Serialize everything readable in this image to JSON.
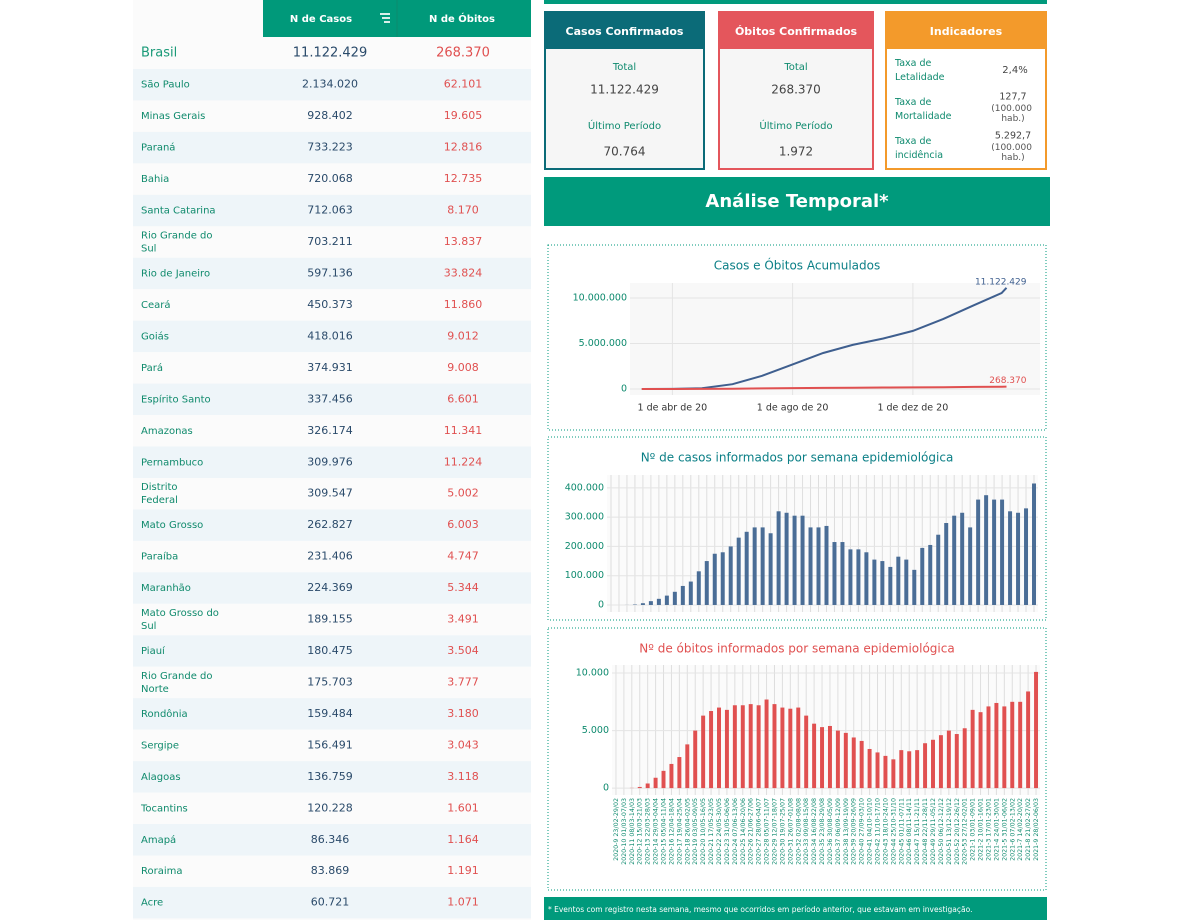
{
  "table": {
    "header": [
      "N de Casos",
      "N de Óbitos"
    ],
    "total": [
      "Brasil",
      "11.122.429",
      "268.370"
    ],
    "rows": [
      [
        "São Paulo",
        "2.134.020",
        "62.101"
      ],
      [
        "Minas Gerais",
        "928.402",
        "19.605"
      ],
      [
        "Paraná",
        "733.223",
        "12.816"
      ],
      [
        "Bahia",
        "720.068",
        "12.735"
      ],
      [
        "Santa Catarina",
        "712.063",
        "8.170"
      ],
      [
        "Rio Grande do Sul",
        "703.211",
        "13.837"
      ],
      [
        "Rio de Janeiro",
        "597.136",
        "33.824"
      ],
      [
        "Ceará",
        "450.373",
        "11.860"
      ],
      [
        "Goiás",
        "418.016",
        "9.012"
      ],
      [
        "Pará",
        "374.931",
        "9.008"
      ],
      [
        "Espírito Santo",
        "337.456",
        "6.601"
      ],
      [
        "Amazonas",
        "326.174",
        "11.341"
      ],
      [
        "Pernambuco",
        "309.976",
        "11.224"
      ],
      [
        "Distrito Federal",
        "309.547",
        "5.002"
      ],
      [
        "Mato Grosso",
        "262.827",
        "6.003"
      ],
      [
        "Paraíba",
        "231.406",
        "4.747"
      ],
      [
        "Maranhão",
        "224.369",
        "5.344"
      ],
      [
        "Mato Grosso do Sul",
        "189.155",
        "3.491"
      ],
      [
        "Piauí",
        "180.475",
        "3.504"
      ],
      [
        "Rio Grande do Norte",
        "175.703",
        "3.777"
      ],
      [
        "Rondônia",
        "159.484",
        "3.180"
      ],
      [
        "Sergipe",
        "156.491",
        "3.043"
      ],
      [
        "Alagoas",
        "136.759",
        "3.118"
      ],
      [
        "Tocantins",
        "120.228",
        "1.601"
      ],
      [
        "Amapá",
        "86.346",
        "1.164"
      ],
      [
        "Roraima",
        "83.869",
        "1.191"
      ],
      [
        "Acre",
        "60.721",
        "1.071"
      ]
    ]
  },
  "cards": [
    {
      "title": "Casos Confirmados",
      "total_label": "Total",
      "total": "11.122.429",
      "period_label": "Último Período",
      "period": "70.764",
      "color": "#0b6b78"
    },
    {
      "title": "Óbitos Confirmados",
      "total_label": "Total",
      "total": "268.370",
      "period_label": "Último Período",
      "period": "1.972",
      "color": "#e4565c"
    }
  ],
  "indicators": {
    "title": "Indicadores",
    "color": "#f39a2b",
    "items": [
      {
        "label": "Taxa de Letalidade",
        "value": "2,4%"
      },
      {
        "label": "Taxa de Mortalidade",
        "value": "127,7",
        "unit": "(100.000 hab.)"
      },
      {
        "label": "Taxa de incidência",
        "value": "5.292,7",
        "unit": "(100.000 hab.)"
      }
    ]
  },
  "section_title": "Análise Temporal*",
  "footnote": "* Eventos com registro nesta semana, mesmo que ocorridos em período anterior, que estavam em investigação.",
  "chart_data": [
    {
      "type": "line",
      "title": "Casos e Óbitos Acumulados",
      "x": [
        "2020-03-01",
        "2020-04-01",
        "2020-05-01",
        "2020-06-01",
        "2020-07-01",
        "2020-08-01",
        "2020-09-01",
        "2020-10-01",
        "2020-11-01",
        "2020-12-01",
        "2021-01-01",
        "2021-02-01",
        "2021-03-01",
        "2021-03-06"
      ],
      "series": [
        {
          "name": "Casos",
          "color": "#3f5f8f",
          "values": [
            2,
            6836,
            91589,
            526447,
            1448753,
            2707877,
            3950931,
            4847092,
            5545705,
            6386787,
            7700578,
            9204731,
            10551259,
            11122429
          ],
          "value_labels": [
            null,
            null,
            null,
            null,
            null,
            null,
            null,
            null,
            null,
            null,
            null,
            null,
            null,
            "11.122.429"
          ]
        },
        {
          "name": "Óbitos",
          "color": "#e05050",
          "values": [
            0,
            241,
            6329,
            29937,
            60632,
            93563,
            121381,
            144680,
            160074,
            173817,
            195411,
            225143,
            255720,
            268370
          ],
          "value_labels": [
            null,
            null,
            null,
            null,
            null,
            null,
            null,
            null,
            null,
            null,
            null,
            null,
            null,
            "268.370"
          ]
        }
      ],
      "xlim": [
        "2020-02-18",
        "2021-04-09"
      ],
      "xticks": [
        {
          "value": "2020-04-01",
          "label": "1 de abr de 20"
        },
        {
          "value": "2020-08-01",
          "label": "1 de ago de 20"
        },
        {
          "value": "2020-12-01",
          "label": "1 de dez de 20"
        }
      ],
      "ylim": [
        -660000,
        11650000
      ],
      "yticks": [
        0,
        {
          "value": 5000000,
          "label": "5.000.000"
        },
        {
          "value": 10000000,
          "label": "10.000.000"
        }
      ],
      "grid": true
    },
    {
      "type": "bar",
      "title": "Nº de casos informados por semana epidemiológica",
      "title_color": "#0b7f86",
      "color": "#4a6d96",
      "values": [
        0,
        2,
        200,
        1500,
        6000,
        13000,
        21000,
        32000,
        45000,
        65000,
        80000,
        115000,
        150000,
        175000,
        180000,
        200000,
        230000,
        250000,
        265000,
        265000,
        245000,
        320000,
        315000,
        305000,
        305000,
        265000,
        265000,
        270000,
        215000,
        215000,
        190000,
        190000,
        180000,
        155000,
        150000,
        130000,
        165000,
        155000,
        120000,
        195000,
        205000,
        240000,
        280000,
        305000,
        315000,
        265000,
        360000,
        375000,
        360000,
        360000,
        320000,
        315000,
        330000,
        415000
      ],
      "ylim": [
        -24000,
        444000
      ],
      "yticks": [
        0,
        {
          "value": 100000,
          "label": "100.000"
        },
        {
          "value": 200000,
          "label": "200.000"
        },
        {
          "value": 300000,
          "label": "300.000"
        },
        {
          "value": 400000,
          "label": "400.000"
        }
      ],
      "grid": true
    },
    {
      "type": "bar",
      "title": "Nº de óbitos informados por semana epidemiológica",
      "title_color": "#e05050",
      "color": "#e05050",
      "categories": [
        "2020-9 23/02-29/02",
        "2020-10 01/03-07/03",
        "2020-11 08/03-14/03",
        "2020-12 15/03-21/03",
        "2020-13 22/03-28/03",
        "2020-14 29/03-04/04",
        "2020-15 05/04-11/04",
        "2020-16 12/04-18/04",
        "2020-17 19/04-25/04",
        "2020-18 26/04-02/05",
        "2020-19 03/05-09/05",
        "2020-20 10/05-16/05",
        "2020-21 17/05-23/05",
        "2020-22 24/05-30/05",
        "2020-23 31/05-06/06",
        "2020-24 07/06-13/06",
        "2020-25 14/06-20/06",
        "2020-26 21/06-27/06",
        "2020-27 28/06-04/07",
        "2020-28 05/07-11/07",
        "2020-29 12/07-18/07",
        "2020-30 19/07-25/07",
        "2020-31 26/07-01/08",
        "2020-32 02/08-08/08",
        "2020-33 09/08-15/08",
        "2020-34 16/08-22/08",
        "2020-35 23/08-29/08",
        "2020-36 30/08-05/09",
        "2020-37 06/09-12/09",
        "2020-38 13/09-19/09",
        "2020-39 20/09-26/09",
        "2020-40 27/09-03/10",
        "2020-41 04/10-10/10",
        "2020-42 11/10-17/10",
        "2020-43 18/10-24/10",
        "2020-44 25/10-31/10",
        "2020-45 01/11-07/11",
        "2020-46 08/11-14/11",
        "2020-47 15/11-21/11",
        "2020-48 22/11-28/11",
        "2020-49 29/11-05/12",
        "2020-50 06/12-12/12",
        "2020-51 13/12-19/12",
        "2020-52 20/12-26/12",
        "2020-53 27/12-02/01",
        "2021-1 03/01-09/01",
        "2021-2 10/01-16/01",
        "2021-3 17/01-23/01",
        "2021-4 24/01-30/01",
        "2021-5 31/01-06/02",
        "2021-6 07/02-13/02",
        "2021-7 14/02-20/02",
        "2021-8 21/02-27/02",
        "2021-9 28/02-06/03"
      ],
      "values": [
        0,
        0,
        20,
        100,
        400,
        900,
        1500,
        2100,
        2700,
        3800,
        5000,
        6300,
        6700,
        7000,
        6800,
        7200,
        7200,
        7300,
        7200,
        7700,
        7300,
        7000,
        6900,
        7000,
        6300,
        5600,
        5300,
        5400,
        5000,
        4800,
        4400,
        4100,
        3400,
        3100,
        2800,
        2500,
        3300,
        3200,
        3300,
        3900,
        4200,
        4600,
        5000,
        4700,
        5200,
        6800,
        6600,
        7100,
        7400,
        7100,
        7500,
        7500,
        8400,
        10100
      ],
      "ylim": [
        -600,
        10700
      ],
      "yticks": [
        0,
        {
          "value": 5000,
          "label": "5.000"
        },
        {
          "value": 10000,
          "label": "10.000"
        }
      ],
      "grid": true
    }
  ]
}
